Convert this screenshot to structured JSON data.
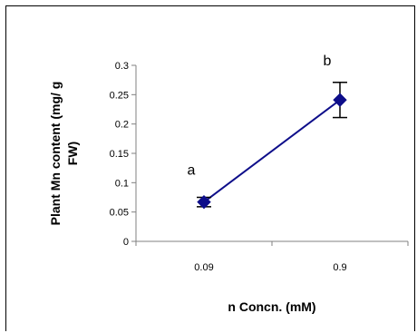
{
  "chart_data": {
    "type": "line",
    "xlabel": "n Concn. (mM)",
    "ylabel_lines": [
      "Plant Mn content (mg/ g",
      "FW)"
    ],
    "categories": [
      "0.09",
      "0.9"
    ],
    "series": [
      {
        "values": [
          0.067,
          0.241
        ],
        "error": [
          0.008,
          0.03
        ],
        "letters": [
          "a",
          "b"
        ]
      }
    ],
    "ylim": [
      0,
      0.3
    ],
    "yticks": [
      "0",
      "0.05",
      "0.1",
      "0.15",
      "0.2",
      "0.25",
      "0.3"
    ],
    "grid": false,
    "colors": {
      "series": "#0e0e8a",
      "axis": "#808080"
    }
  }
}
